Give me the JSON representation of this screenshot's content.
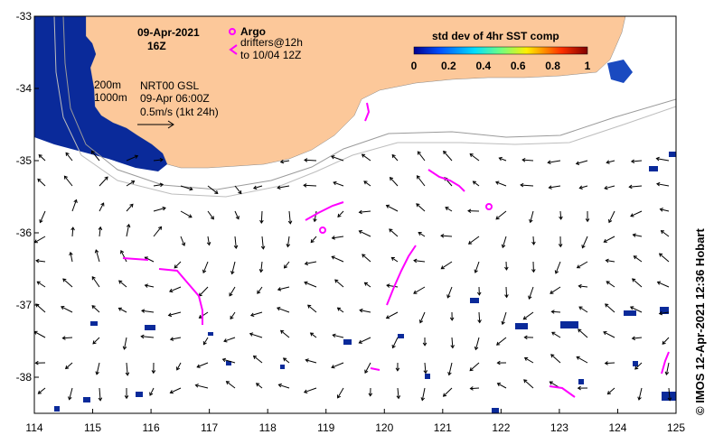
{
  "map": {
    "lon_ticks": [
      "114",
      "115",
      "116",
      "117",
      "118",
      "119",
      "120",
      "121",
      "122",
      "123",
      "124",
      "125"
    ],
    "lat_ticks": [
      "-33",
      "-34",
      "-35",
      "-36",
      "-37",
      "-38"
    ],
    "lon_range": [
      114,
      125
    ],
    "lat_range": [
      -38.5,
      -33
    ]
  },
  "header": {
    "date": "09-Apr-2021",
    "hour": "16Z"
  },
  "legend": {
    "argo_label": "Argo",
    "drifters_line1": "drifters@12h",
    "drifters_line2": "to 10/04 12Z",
    "argo_color": "#ff00ff"
  },
  "colorbar": {
    "title": "std dev of 4hr SST comp",
    "ticks": [
      "0",
      "0.2",
      "0.4",
      "0.6",
      "0.8",
      "1"
    ]
  },
  "annotations": {
    "iso1": "200m",
    "iso2": "1000m",
    "model": "NRT00 GSL",
    "model_time": "09-Apr 06:00Z",
    "scale": "0.5m/s (1kt 24h)"
  },
  "credit": "© IMOS 12-Apr-2021 12:36 Hobart",
  "colors": {
    "land": "#fcc89a",
    "arrow": "#000000",
    "drifter": "#ff00ff",
    "sst_low": "#0a2a9a"
  }
}
